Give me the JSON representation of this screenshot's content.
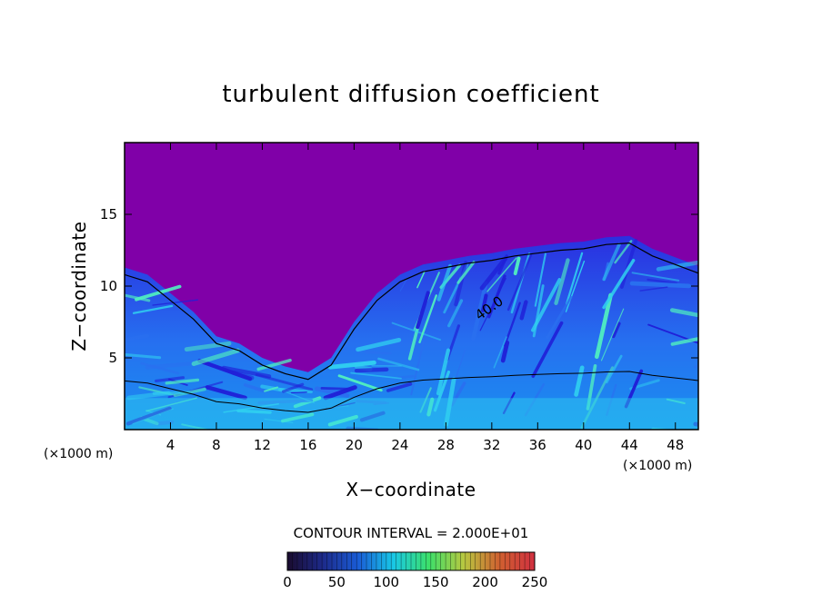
{
  "chart_data": {
    "type": "heatmap",
    "title": "turbulent diffusion coefficient",
    "xlabel": "X−coordinate",
    "ylabel": "Z−coordinate",
    "x_unit": "(×1000 m)",
    "x_unit_right": "(×1000 m)",
    "xlim": [
      0,
      50
    ],
    "ylim": [
      0,
      20
    ],
    "x_ticks": [
      4,
      8,
      12,
      16,
      20,
      24,
      28,
      32,
      36,
      40,
      44,
      48
    ],
    "y_ticks": [
      5,
      10,
      15
    ],
    "contour_interval_text": "CONTOUR INTERVAL = 2.000E+01",
    "contour_interval": 20,
    "contour_label": "40.0",
    "contour_label_position": [
      32,
      8.2
    ],
    "colorbar": {
      "min": 0,
      "max": 250,
      "ticks": [
        0,
        50,
        100,
        150,
        200,
        250
      ],
      "colors": [
        "#1a0b2e",
        "#1d2a8a",
        "#1a5cd6",
        "#18c8e6",
        "#3ce06a",
        "#b8c840",
        "#d06030",
        "#d03040"
      ]
    },
    "colors": {
      "background_region": "#8000a8",
      "low": "#2020d8",
      "medium": "#2a70f0",
      "high": "#30d0f0",
      "peak": "#50f0c0"
    },
    "boundary_height_profile": [
      [
        0,
        11.3
      ],
      [
        2,
        10.8
      ],
      [
        4,
        9.5
      ],
      [
        6,
        8.2
      ],
      [
        8,
        6.5
      ],
      [
        10,
        6.0
      ],
      [
        12,
        5.0
      ],
      [
        14,
        4.4
      ],
      [
        16,
        4.0
      ],
      [
        18,
        5.0
      ],
      [
        20,
        7.5
      ],
      [
        22,
        9.5
      ],
      [
        24,
        10.8
      ],
      [
        26,
        11.5
      ],
      [
        28,
        11.8
      ],
      [
        30,
        12.1
      ],
      [
        32,
        12.3
      ],
      [
        34,
        12.6
      ],
      [
        36,
        12.8
      ],
      [
        38,
        13.0
      ],
      [
        40,
        13.1
      ],
      [
        42,
        13.4
      ],
      [
        44,
        13.5
      ],
      [
        46,
        12.6
      ],
      [
        48,
        12.0
      ],
      [
        50,
        11.4
      ]
    ]
  }
}
